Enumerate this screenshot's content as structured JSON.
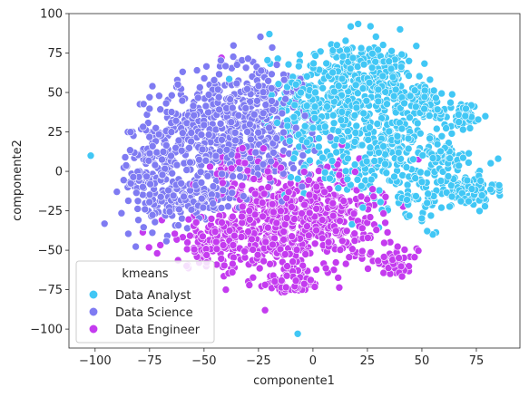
{
  "chart_data": {
    "type": "scatter",
    "title": "",
    "xlabel": "componente1",
    "ylabel": "componente2",
    "xlim": [
      -112,
      95
    ],
    "ylim": [
      -112,
      100
    ],
    "xticks": [
      -100,
      -75,
      -50,
      -25,
      0,
      25,
      50,
      75
    ],
    "yticks": [
      100,
      75,
      50,
      25,
      0,
      -25,
      -50,
      -75,
      -100
    ],
    "xtick_labels": [
      "−100",
      "−75",
      "−50",
      "−25",
      "0",
      "25",
      "50",
      "75"
    ],
    "ytick_labels": [
      "100",
      "75",
      "50",
      "25",
      "0",
      "−25",
      "−50",
      "−75",
      "−100"
    ],
    "grid": false,
    "legend": {
      "title": "kmeans",
      "placement": "lower-left"
    },
    "series": [
      {
        "name": "Data Analyst",
        "color": "#41c7f5",
        "clusters": [
          {
            "cx": 10,
            "cy": 50,
            "sx": 12,
            "sy": 18,
            "n": 260
          },
          {
            "cx": 30,
            "cy": 60,
            "sx": 9,
            "sy": 10,
            "n": 140
          },
          {
            "cx": 38,
            "cy": 25,
            "sx": 12,
            "sy": 12,
            "n": 150
          },
          {
            "cx": 25,
            "cy": 5,
            "sx": 14,
            "sy": 10,
            "n": 130
          },
          {
            "cx": 50,
            "cy": 45,
            "sx": 5,
            "sy": 6,
            "n": 45
          },
          {
            "cx": 60,
            "cy": 10,
            "sx": 6,
            "sy": 5,
            "n": 55
          },
          {
            "cx": 70,
            "cy": -12,
            "sx": 7,
            "sy": 5,
            "n": 120
          },
          {
            "cx": 68,
            "cy": 35,
            "sx": 6,
            "sy": 5,
            "n": 50
          },
          {
            "cx": 45,
            "cy": -20,
            "sx": 8,
            "sy": 10,
            "n": 55
          },
          {
            "cx": -5,
            "cy": 35,
            "sx": 7,
            "sy": 12,
            "n": 80
          }
        ],
        "outliers": [
          [
            -20,
            87
          ],
          [
            40,
            90
          ],
          [
            -7,
            -103
          ],
          [
            -102,
            10
          ],
          [
            85,
            8
          ],
          [
            55,
            -40
          ],
          [
            -13,
            -15
          ]
        ]
      },
      {
        "name": "Data Science",
        "color": "#7f7bf2",
        "clusters": [
          {
            "cx": -45,
            "cy": 25,
            "sx": 14,
            "sy": 18,
            "n": 420
          },
          {
            "cx": -72,
            "cy": 0,
            "sx": 8,
            "sy": 18,
            "n": 160
          },
          {
            "cx": -25,
            "cy": 45,
            "sx": 10,
            "sy": 14,
            "n": 160
          },
          {
            "cx": -55,
            "cy": -20,
            "sx": 10,
            "sy": 8,
            "n": 100
          },
          {
            "cx": -15,
            "cy": 10,
            "sx": 8,
            "sy": 10,
            "n": 80
          }
        ],
        "outliers": [
          [
            -75,
            47
          ],
          [
            -85,
            -10
          ],
          [
            -62,
            55
          ],
          [
            -5,
            55
          ]
        ]
      },
      {
        "name": "Data Engineer",
        "color": "#c43bef",
        "clusters": [
          {
            "cx": -20,
            "cy": -35,
            "sx": 14,
            "sy": 14,
            "n": 300
          },
          {
            "cx": 5,
            "cy": -25,
            "sx": 12,
            "sy": 15,
            "n": 240
          },
          {
            "cx": -45,
            "cy": -45,
            "sx": 12,
            "sy": 8,
            "n": 130
          },
          {
            "cx": -10,
            "cy": -70,
            "sx": 9,
            "sy": 5,
            "n": 60
          },
          {
            "cx": 38,
            "cy": -58,
            "sx": 5,
            "sy": 4,
            "n": 55
          },
          {
            "cx": 20,
            "cy": -40,
            "sx": 6,
            "sy": 7,
            "n": 45
          },
          {
            "cx": -30,
            "cy": 0,
            "sx": 10,
            "sy": 8,
            "n": 80
          }
        ],
        "outliers": [
          [
            -42,
            72
          ],
          [
            -22,
            -88
          ],
          [
            -5,
            -75
          ],
          [
            -40,
            -75
          ]
        ]
      }
    ]
  }
}
